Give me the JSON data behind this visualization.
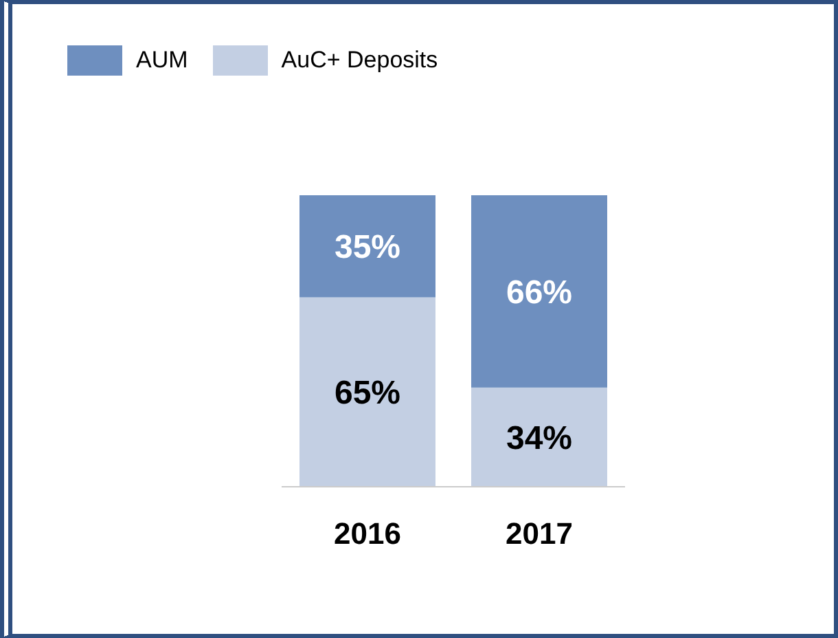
{
  "chart_data": {
    "type": "bar",
    "stacked": true,
    "categories": [
      "2016",
      "2017"
    ],
    "series": [
      {
        "name": "AuC+ Deposits",
        "color": "#c3cfe3",
        "values": [
          65,
          34
        ],
        "value_labels": [
          "65%",
          "34%"
        ]
      },
      {
        "name": "AUM",
        "color": "#6e8fbf",
        "values": [
          35,
          66
        ],
        "value_labels": [
          "35%",
          "66%"
        ]
      }
    ],
    "legend": "top left",
    "grid": false
  }
}
